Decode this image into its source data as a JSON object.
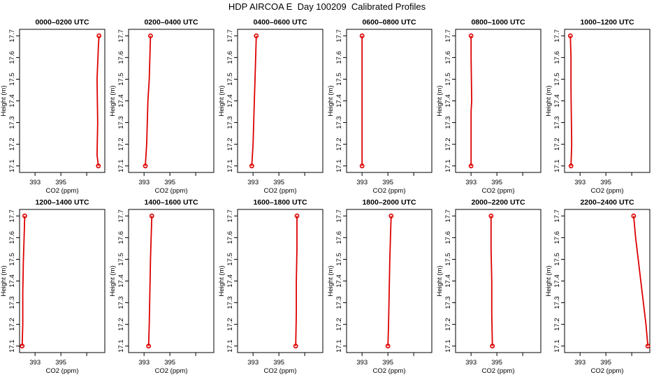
{
  "title": "HDP AIRCOA E  Day 100209  Calibrated Profiles",
  "colors": {
    "profile": "#dd0000",
    "axes": "#000000",
    "background": "#ffffff"
  },
  "chart_data": [
    {
      "type": "line",
      "title": "0000–0200 UTC",
      "xlabel": "CO2 (ppm)",
      "ylabel": "Height (m)",
      "xlim": [
        391.8,
        398.4
      ],
      "ylim": [
        17.07,
        17.73
      ],
      "xticks": [
        393,
        395
      ],
      "yticks": [
        17.1,
        17.2,
        17.3,
        17.4,
        17.5,
        17.6,
        17.7
      ],
      "x": [
        397.9,
        397.8,
        397.85,
        397.8,
        397.9,
        397.95
      ],
      "y": [
        17.1,
        17.15,
        17.3,
        17.5,
        17.65,
        17.7
      ]
    },
    {
      "type": "line",
      "title": "0200–0400 UTC",
      "xlabel": "CO2 (ppm)",
      "ylabel": "Height (m)",
      "xlim": [
        391.8,
        398.4
      ],
      "ylim": [
        17.07,
        17.73
      ],
      "xticks": [
        393,
        395
      ],
      "yticks": [
        17.1,
        17.2,
        17.3,
        17.4,
        17.5,
        17.6,
        17.7
      ],
      "x": [
        393.1,
        393.2,
        393.25,
        393.3,
        393.4,
        393.45,
        393.5
      ],
      "y": [
        17.1,
        17.2,
        17.3,
        17.4,
        17.5,
        17.6,
        17.7
      ]
    },
    {
      "type": "line",
      "title": "0400–0600 UTC",
      "xlabel": "CO2 (ppm)",
      "ylabel": "Height (m)",
      "xlim": [
        391.8,
        398.4
      ],
      "ylim": [
        17.07,
        17.73
      ],
      "xticks": [
        393,
        395
      ],
      "yticks": [
        17.1,
        17.2,
        17.3,
        17.4,
        17.5,
        17.6,
        17.7
      ],
      "x": [
        392.9,
        393.0,
        393.05,
        393.1,
        393.15,
        393.2,
        393.25
      ],
      "y": [
        17.1,
        17.2,
        17.3,
        17.4,
        17.5,
        17.6,
        17.7
      ]
    },
    {
      "type": "line",
      "title": "0600–0800 UTC",
      "xlabel": "CO2 (ppm)",
      "ylabel": "Height (m)",
      "xlim": [
        391.8,
        398.4
      ],
      "ylim": [
        17.07,
        17.73
      ],
      "xticks": [
        393,
        395
      ],
      "yticks": [
        17.1,
        17.2,
        17.3,
        17.4,
        17.5,
        17.6,
        17.7
      ],
      "x": [
        393.0,
        393.0,
        393.0,
        393.0,
        393.0
      ],
      "y": [
        17.1,
        17.3,
        17.5,
        17.6,
        17.7
      ]
    },
    {
      "type": "line",
      "title": "0800–1000 UTC",
      "xlabel": "CO2 (ppm)",
      "ylabel": "Height (m)",
      "xlim": [
        391.8,
        398.4
      ],
      "ylim": [
        17.07,
        17.73
      ],
      "xticks": [
        393,
        395
      ],
      "yticks": [
        17.1,
        17.2,
        17.3,
        17.4,
        17.5,
        17.6,
        17.7
      ],
      "x": [
        393.0,
        393.0,
        393.05,
        393.0,
        393.0
      ],
      "y": [
        17.1,
        17.35,
        17.4,
        17.6,
        17.7
      ]
    },
    {
      "type": "line",
      "title": "1000–1200 UTC",
      "xlabel": "CO2 (ppm)",
      "ylabel": "Height (m)",
      "xlim": [
        391.8,
        398.4
      ],
      "ylim": [
        17.07,
        17.73
      ],
      "xticks": [
        393,
        395
      ],
      "yticks": [
        17.1,
        17.2,
        17.3,
        17.4,
        17.5,
        17.6,
        17.7
      ],
      "x": [
        392.3,
        392.35,
        392.3,
        392.3,
        392.25
      ],
      "y": [
        17.1,
        17.2,
        17.45,
        17.6,
        17.7
      ]
    },
    {
      "type": "line",
      "title": "1200–1400 UTC",
      "xlabel": "CO2 (ppm)",
      "ylabel": "Height (m)",
      "xlim": [
        391.8,
        398.4
      ],
      "ylim": [
        17.07,
        17.73
      ],
      "xticks": [
        393,
        395
      ],
      "yticks": [
        17.1,
        17.2,
        17.3,
        17.4,
        17.5,
        17.6,
        17.7
      ],
      "x": [
        392.0,
        392.05,
        392.05,
        392.1,
        392.15,
        392.2
      ],
      "y": [
        17.1,
        17.2,
        17.35,
        17.5,
        17.6,
        17.7
      ]
    },
    {
      "type": "line",
      "title": "1400–1600 UTC",
      "xlabel": "CO2 (ppm)",
      "ylabel": "Height (m)",
      "xlim": [
        391.8,
        398.4
      ],
      "ylim": [
        17.07,
        17.73
      ],
      "xticks": [
        393,
        395
      ],
      "yticks": [
        17.1,
        17.2,
        17.3,
        17.4,
        17.5,
        17.6,
        17.7
      ],
      "x": [
        393.35,
        393.4,
        393.45,
        393.5,
        393.55,
        393.6
      ],
      "y": [
        17.1,
        17.2,
        17.35,
        17.5,
        17.6,
        17.7
      ]
    },
    {
      "type": "line",
      "title": "1600–1800 UTC",
      "xlabel": "CO2 (ppm)",
      "ylabel": "Height (m)",
      "xlim": [
        391.8,
        398.4
      ],
      "ylim": [
        17.07,
        17.73
      ],
      "xticks": [
        393,
        395
      ],
      "yticks": [
        17.1,
        17.2,
        17.3,
        17.4,
        17.5,
        17.6,
        17.7
      ],
      "x": [
        396.3,
        396.35,
        396.35,
        396.4,
        396.4
      ],
      "y": [
        17.1,
        17.25,
        17.4,
        17.55,
        17.7
      ]
    },
    {
      "type": "line",
      "title": "1800–2000 UTC",
      "xlabel": "CO2 (ppm)",
      "ylabel": "Height (m)",
      "xlim": [
        391.8,
        398.4
      ],
      "ylim": [
        17.07,
        17.73
      ],
      "xticks": [
        393,
        395
      ],
      "yticks": [
        17.1,
        17.2,
        17.3,
        17.4,
        17.5,
        17.6,
        17.7
      ],
      "x": [
        395.0,
        395.05,
        395.1,
        395.15,
        395.2,
        395.25
      ],
      "y": [
        17.1,
        17.2,
        17.35,
        17.5,
        17.6,
        17.7
      ]
    },
    {
      "type": "line",
      "title": "2000–2200 UTC",
      "xlabel": "CO2 (ppm)",
      "ylabel": "Height (m)",
      "xlim": [
        391.8,
        398.4
      ],
      "ylim": [
        17.07,
        17.73
      ],
      "xticks": [
        393,
        395
      ],
      "yticks": [
        17.1,
        17.2,
        17.3,
        17.4,
        17.5,
        17.6,
        17.7
      ],
      "x": [
        394.65,
        394.6,
        394.6,
        394.55,
        394.55
      ],
      "y": [
        17.1,
        17.25,
        17.4,
        17.55,
        17.7
      ]
    },
    {
      "type": "line",
      "title": "2200–2400 UTC",
      "xlabel": "CO2 (ppm)",
      "ylabel": "Height (m)",
      "xlim": [
        391.8,
        398.4
      ],
      "ylim": [
        17.07,
        17.73
      ],
      "xticks": [
        393,
        395
      ],
      "yticks": [
        17.1,
        17.2,
        17.3,
        17.4,
        17.5,
        17.6,
        17.7
      ],
      "x": [
        398.25,
        398.1,
        397.9,
        397.7,
        397.5,
        397.3,
        397.15
      ],
      "y": [
        17.1,
        17.2,
        17.3,
        17.4,
        17.5,
        17.6,
        17.7
      ]
    }
  ]
}
